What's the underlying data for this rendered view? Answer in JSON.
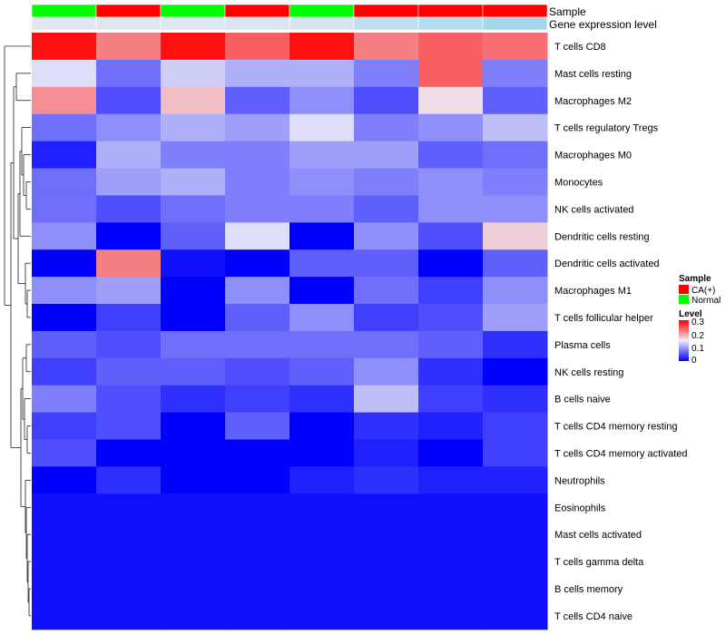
{
  "chart_data": {
    "type": "heatmap",
    "annotation_labels": [
      "Sample",
      "Gene expression level"
    ],
    "columns": [
      {
        "sample": "Normal",
        "gene_level": 0.92
      },
      {
        "sample": "CA(+)",
        "gene_level": 0.92
      },
      {
        "sample": "Normal",
        "gene_level": 0.9
      },
      {
        "sample": "CA(+)",
        "gene_level": 0.88
      },
      {
        "sample": "Normal",
        "gene_level": 0.86
      },
      {
        "sample": "CA(+)",
        "gene_level": 0.7
      },
      {
        "sample": "CA(+)",
        "gene_level": 0.62
      },
      {
        "sample": "CA(+)",
        "gene_level": 0.52
      }
    ],
    "rows": [
      "T cells CD8",
      "Mast cells resting",
      "Macrophages M2",
      "T cells regulatory  Tregs",
      "Macrophages M0",
      "Monocytes",
      "NK cells activated",
      "Dendritic cells resting",
      "Dendritic cells activated",
      "Macrophages M1",
      "T cells follicular helper",
      "Plasma cells",
      "NK cells resting",
      "B cells naive",
      "T cells CD4 memory resting",
      "T cells CD4 memory activated",
      "Neutrophils",
      "Eosinophils",
      "Mast cells activated",
      "T cells gamma delta",
      "B cells memory",
      "T cells CD4 naive"
    ],
    "values": [
      [
        0.29,
        0.22,
        0.29,
        0.24,
        0.29,
        0.22,
        0.24,
        0.23
      ],
      [
        0.14,
        0.07,
        0.13,
        0.11,
        0.11,
        0.08,
        0.24,
        0.08
      ],
      [
        0.21,
        0.05,
        0.18,
        0.06,
        0.09,
        0.05,
        0.16,
        0.06
      ],
      [
        0.07,
        0.09,
        0.11,
        0.1,
        0.14,
        0.08,
        0.09,
        0.12
      ],
      [
        0.02,
        0.11,
        0.08,
        0.08,
        0.1,
        0.1,
        0.06,
        0.07
      ],
      [
        0.07,
        0.1,
        0.11,
        0.08,
        0.09,
        0.08,
        0.09,
        0.08
      ],
      [
        0.07,
        0.05,
        0.07,
        0.08,
        0.08,
        0.06,
        0.09,
        0.09
      ],
      [
        0.09,
        0.0,
        0.06,
        0.14,
        0.0,
        0.09,
        0.05,
        0.17
      ],
      [
        0.0,
        0.22,
        0.01,
        0.0,
        0.06,
        0.06,
        0.0,
        0.06
      ],
      [
        0.09,
        0.1,
        0.0,
        0.09,
        0.0,
        0.07,
        0.04,
        0.09
      ],
      [
        0.0,
        0.04,
        0.0,
        0.06,
        0.09,
        0.04,
        0.05,
        0.1
      ],
      [
        0.06,
        0.05,
        0.07,
        0.07,
        0.07,
        0.07,
        0.06,
        0.03
      ],
      [
        0.04,
        0.06,
        0.06,
        0.05,
        0.06,
        0.09,
        0.03,
        0.0
      ],
      [
        0.08,
        0.05,
        0.03,
        0.04,
        0.03,
        0.12,
        0.04,
        0.03
      ],
      [
        0.04,
        0.05,
        0.0,
        0.06,
        0.0,
        0.03,
        0.02,
        0.04
      ],
      [
        0.05,
        0.0,
        0.0,
        0.0,
        0.0,
        0.02,
        0.0,
        0.04
      ],
      [
        0.0,
        0.03,
        0.0,
        0.0,
        0.02,
        0.03,
        0.02,
        0.02
      ],
      [
        0.01,
        0.01,
        0.01,
        0.01,
        0.01,
        0.01,
        0.01,
        0.01
      ],
      [
        0.01,
        0.01,
        0.01,
        0.01,
        0.01,
        0.01,
        0.01,
        0.01
      ],
      [
        0.01,
        0.01,
        0.01,
        0.01,
        0.01,
        0.01,
        0.01,
        0.01
      ],
      [
        0.01,
        0.01,
        0.01,
        0.01,
        0.01,
        0.01,
        0.01,
        0.01
      ],
      [
        0.01,
        0.01,
        0.01,
        0.01,
        0.01,
        0.01,
        0.01,
        0.01
      ]
    ],
    "color_scale": {
      "low": "#0000ff",
      "mid": "#eeeef8",
      "high": "#ff0000",
      "min": 0,
      "mid_value": 0.15,
      "max": 0.3
    },
    "legend": {
      "sample_title": "Sample",
      "sample_entries": [
        {
          "label": "CA(+)",
          "color": "#ff0000"
        },
        {
          "label": "Normal",
          "color": "#00ff00"
        }
      ],
      "level_title": "Level",
      "level_ticks": [
        "0.3",
        "0.2",
        "0.1",
        "0"
      ]
    },
    "gene_level_colors": {
      "low": "#59c3ea",
      "high": "#ebebf2"
    },
    "row_dendrogram": true
  }
}
